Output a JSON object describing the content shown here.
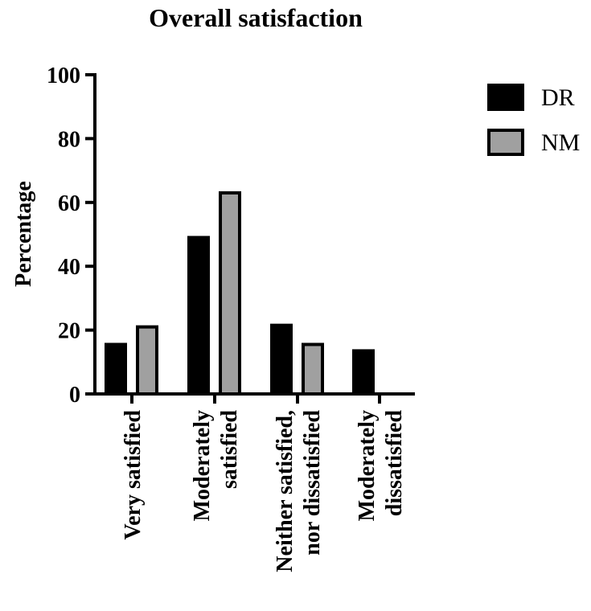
{
  "chart_data": {
    "type": "bar",
    "title": "Overall satisfaction",
    "xlabel": "",
    "ylabel": "Percentage",
    "ylim": [
      0,
      100
    ],
    "yticks": [
      0,
      20,
      40,
      60,
      80,
      100
    ],
    "categories": [
      [
        "Very satisfied"
      ],
      [
        "Moderately",
        "satisfied"
      ],
      [
        "Neither satisfied,",
        "nor dissatisfied"
      ],
      [
        "Moderately",
        "dissatisfied"
      ]
    ],
    "series": [
      {
        "name": "DR",
        "color": "#000000",
        "values": [
          15.5,
          49,
          21.5,
          13.5
        ]
      },
      {
        "name": "NM",
        "color": "#a0a0a0",
        "values": [
          21,
          63,
          15.5,
          0
        ]
      }
    ],
    "legend_position": "top-right",
    "grid": false
  }
}
